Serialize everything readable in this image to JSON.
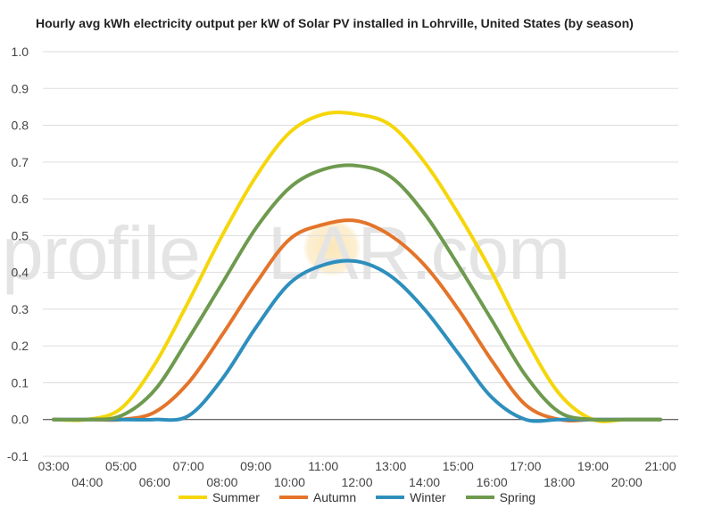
{
  "title": "Hourly avg kWh electricity output per kW of Solar PV installed in Lohrville, United States (by season)",
  "watermark": {
    "left": "profile",
    "right": "LAR.com"
  },
  "chart_data": {
    "type": "line",
    "title": "Hourly avg kWh electricity output per kW of Solar PV installed in Lohrville, United States (by season)",
    "xlabel": "",
    "ylabel": "",
    "ylim": [
      -0.1,
      1.0
    ],
    "yticks": [
      "-0.1",
      "0.0",
      "0.1",
      "0.2",
      "0.3",
      "0.4",
      "0.5",
      "0.6",
      "0.7",
      "0.8",
      "0.9",
      "1.0"
    ],
    "x": [
      "03:00",
      "04:00",
      "05:00",
      "06:00",
      "07:00",
      "08:00",
      "09:00",
      "10:00",
      "11:00",
      "12:00",
      "13:00",
      "14:00",
      "15:00",
      "16:00",
      "17:00",
      "18:00",
      "19:00",
      "20:00",
      "21:00"
    ],
    "grid": true,
    "legend": "bottom",
    "series": [
      {
        "name": "Summer",
        "color": "#f5d60a",
        "values": [
          0.0,
          0.0,
          0.03,
          0.15,
          0.32,
          0.5,
          0.66,
          0.78,
          0.83,
          0.83,
          0.8,
          0.7,
          0.56,
          0.4,
          0.22,
          0.07,
          0.0,
          0.0,
          0.0
        ]
      },
      {
        "name": "Autumn",
        "color": "#e3742a",
        "values": [
          0.0,
          0.0,
          0.0,
          0.02,
          0.1,
          0.23,
          0.37,
          0.49,
          0.53,
          0.54,
          0.5,
          0.42,
          0.3,
          0.16,
          0.04,
          0.0,
          0.0,
          0.0,
          0.0
        ]
      },
      {
        "name": "Winter",
        "color": "#2e8fbd",
        "values": [
          0.0,
          0.0,
          0.0,
          0.0,
          0.01,
          0.11,
          0.25,
          0.37,
          0.42,
          0.43,
          0.39,
          0.3,
          0.18,
          0.06,
          0.0,
          0.0,
          0.0,
          0.0,
          0.0
        ]
      },
      {
        "name": "Spring",
        "color": "#6e9a4e",
        "values": [
          0.0,
          0.0,
          0.01,
          0.08,
          0.22,
          0.37,
          0.52,
          0.63,
          0.68,
          0.69,
          0.66,
          0.56,
          0.42,
          0.27,
          0.12,
          0.02,
          0.0,
          0.0,
          0.0
        ]
      }
    ]
  }
}
